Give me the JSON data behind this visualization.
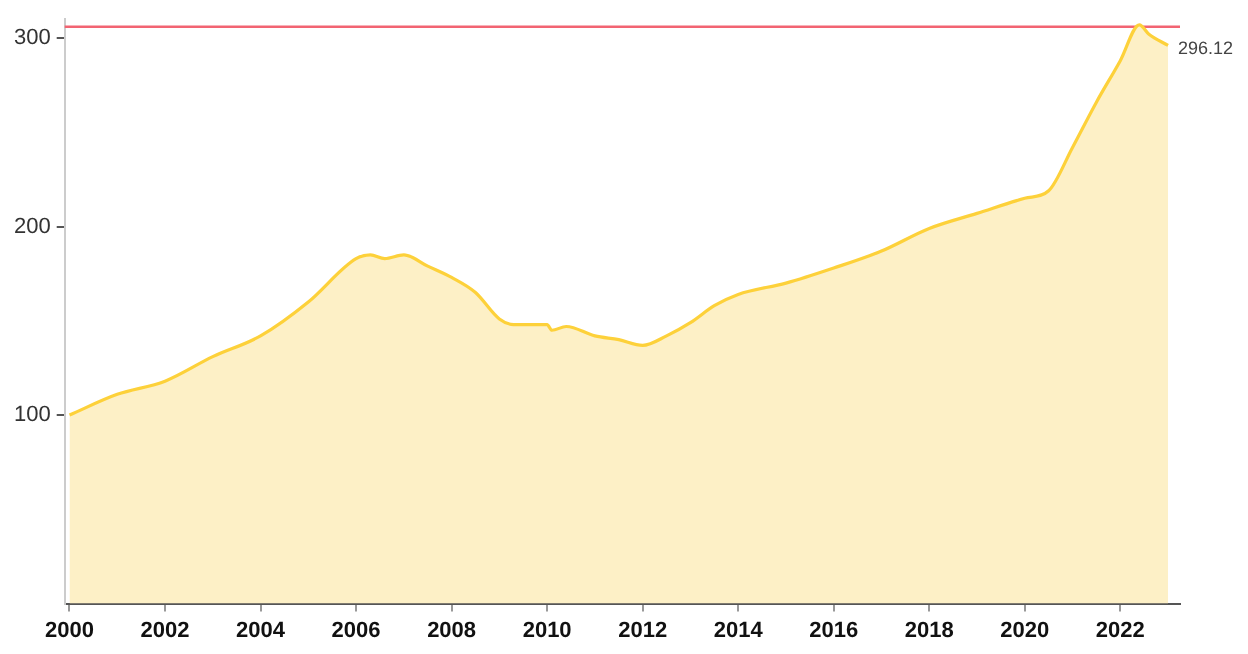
{
  "chart_data": {
    "type": "area",
    "x": [
      2000,
      2001,
      2002,
      2003,
      2004,
      2005,
      2006,
      2006.3,
      2006.6,
      2007,
      2007.5,
      2008,
      2008.5,
      2009,
      2009.3,
      2010,
      2010.1,
      2010.4,
      2011,
      2011.5,
      2012,
      2012.5,
      2013,
      2013.5,
      2014,
      2015,
      2016,
      2017,
      2018,
      2019,
      2020,
      2020.5,
      2021,
      2021.5,
      2022,
      2022.4,
      2022.6,
      2023
    ],
    "series": [
      {
        "color": "#fdd13a",
        "values": [
          100,
          111,
          118,
          131,
          142,
          160,
          183,
          185,
          183,
          185,
          179,
          173,
          165,
          151,
          148,
          148,
          145,
          147,
          142,
          140,
          137,
          142,
          149,
          158,
          164,
          170,
          178,
          187,
          199,
          207,
          215,
          219,
          242,
          266,
          288,
          307,
          302,
          296.12
        ],
        "value_labels": [
          null,
          null,
          null,
          null,
          null,
          null,
          null,
          null,
          null,
          null,
          null,
          null,
          null,
          null,
          null,
          null,
          null,
          null,
          null,
          null,
          null,
          null,
          null,
          null,
          null,
          null,
          null,
          null,
          null,
          null,
          null,
          null,
          null,
          null,
          null,
          null,
          null,
          "296.12"
        ]
      }
    ],
    "xlim": [
      1999.9,
      2023.25
    ],
    "xticks": [
      2000,
      2002,
      2004,
      2006,
      2008,
      2010,
      2012,
      2014,
      2016,
      2018,
      2020,
      2022
    ],
    "ylim": [
      0,
      310
    ],
    "yticks": [
      100,
      200,
      300
    ],
    "ref_lines": [
      {
        "axis": "y",
        "value": 306,
        "color": "#f26472"
      }
    ],
    "grid": false,
    "legend": false
  }
}
